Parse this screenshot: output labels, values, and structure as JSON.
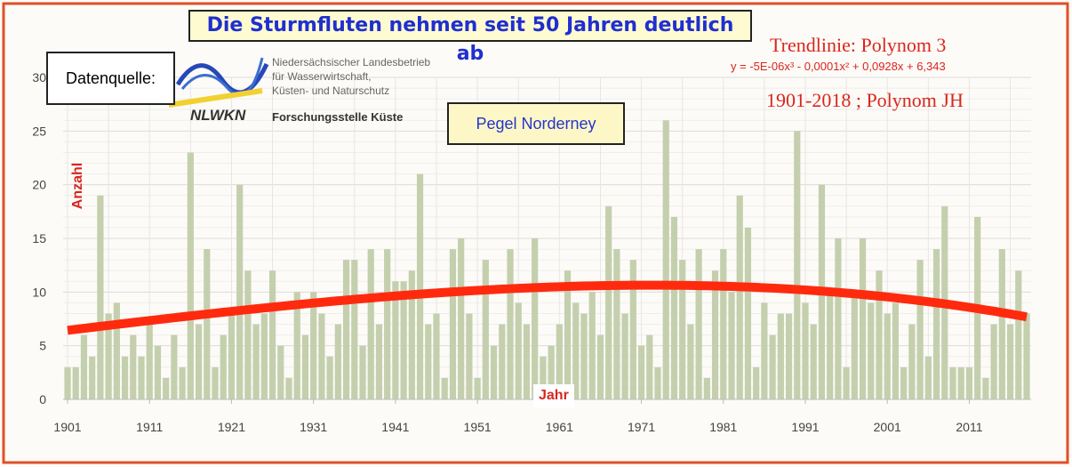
{
  "title": "Die Sturmfluten nehmen seit 50 Jahren deutlich ab",
  "source_label": "Datenquelle:",
  "logo": {
    "abbr": "NLWKN",
    "org_lines": [
      "Niedersächsischer Landesbetrieb",
      "für Wasserwirtschaft,",
      "Küsten- und Naturschutz"
    ],
    "dept": "Forschungsstelle Küste"
  },
  "station": "Pegel Norderney",
  "trend": {
    "label": "Trendlinie: Polynom 3",
    "equation": "y = -5E-06x³ - 0,0001x² + 0,0928x + 6,343",
    "period": "1901-2018 ; Polynom JH",
    "coeffs": [
      -5e-06,
      -0.0001,
      0.0928,
      6.343
    ],
    "color": "#ff2a0e"
  },
  "chart_data": {
    "type": "bar",
    "title": "Die Sturmfluten nehmen seit 50 Jahren deutlich ab",
    "xlabel": "Jahr",
    "ylabel": "Anzahl",
    "ylim": [
      0,
      30
    ],
    "yticks": [
      0,
      5,
      10,
      15,
      20,
      25,
      30
    ],
    "xticks": [
      1901,
      1911,
      1921,
      1931,
      1941,
      1951,
      1961,
      1971,
      1981,
      1991,
      2001,
      2011
    ],
    "x_start": 1901,
    "x_end": 2018,
    "bar_color": "#c4cfae",
    "values": [
      3,
      3,
      6,
      4,
      19,
      8,
      9,
      4,
      6,
      4,
      7,
      5,
      2,
      6,
      3,
      23,
      7,
      14,
      3,
      6,
      8,
      20,
      12,
      7,
      8,
      12,
      5,
      2,
      10,
      6,
      10,
      8,
      4,
      7,
      13,
      13,
      5,
      14,
      7,
      14,
      11,
      11,
      12,
      21,
      7,
      8,
      2,
      14,
      15,
      8,
      2,
      13,
      5,
      7,
      14,
      9,
      7,
      15,
      4,
      5,
      7,
      12,
      9,
      8,
      10,
      6,
      18,
      14,
      8,
      13,
      5,
      6,
      3,
      26,
      17,
      13,
      7,
      14,
      2,
      12,
      14,
      10,
      19,
      16,
      3,
      9,
      6,
      8,
      8,
      25,
      9,
      7,
      20,
      10,
      15,
      3,
      10,
      15,
      9,
      12,
      8,
      9,
      3,
      7,
      13,
      4,
      14,
      18,
      3,
      3,
      3,
      17,
      2,
      7,
      14,
      7,
      12,
      8
    ]
  }
}
